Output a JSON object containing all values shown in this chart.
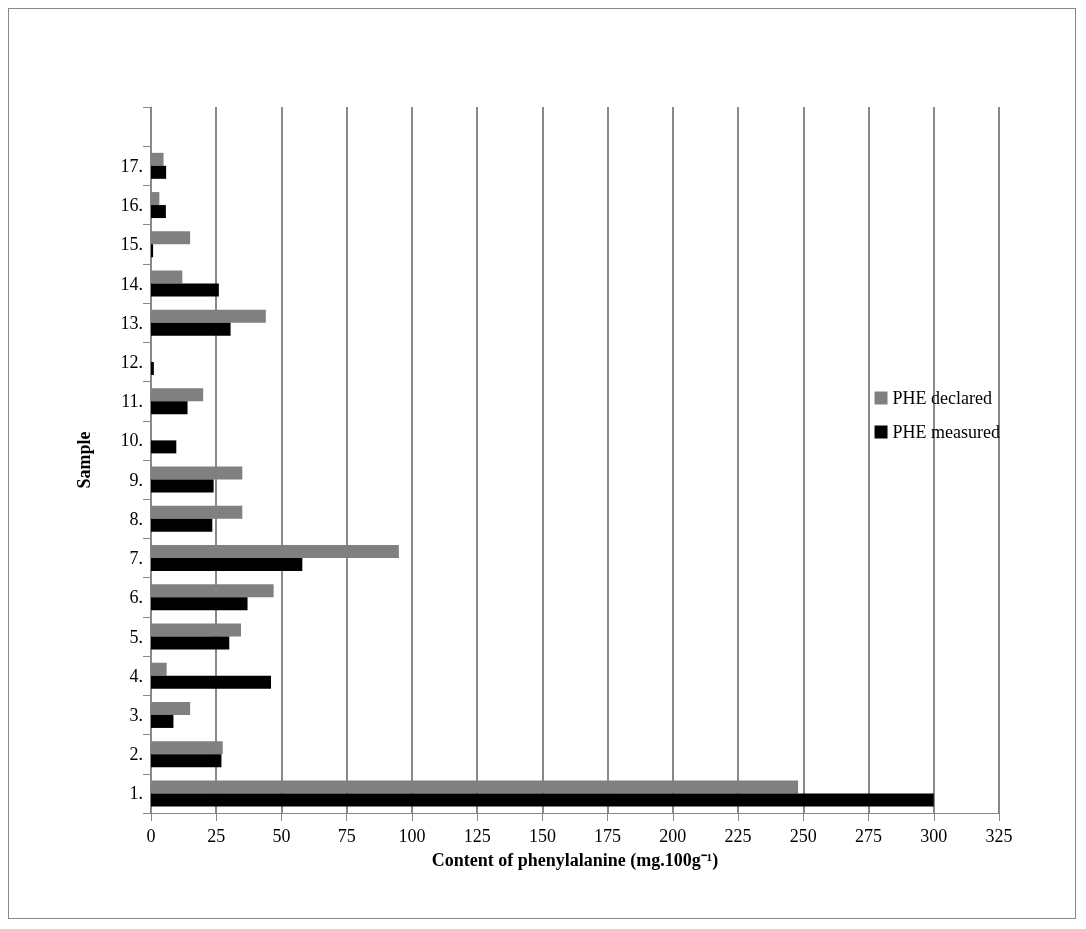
{
  "chart_data": {
    "type": "bar",
    "orientation": "horizontal",
    "xlabel": "Content of phenylalanine (mg.100g⁻¹)",
    "ylabel": "Sample",
    "categories": [
      null,
      "17.",
      "16.",
      "15.",
      "14.",
      "13.",
      "12.",
      "11.",
      "10.",
      "9.",
      "8.",
      "7.",
      "6.",
      "5.",
      "4.",
      "3.",
      "2.",
      "1."
    ],
    "series": [
      {
        "name": "PHE declared",
        "color": "#808080",
        "values": [
          null,
          4.8,
          3.2,
          15,
          12,
          44,
          null,
          20,
          null,
          35,
          35,
          95,
          47,
          34.5,
          6,
          15,
          27.5,
          248
        ]
      },
      {
        "name": "PHE measured",
        "color": "#000000",
        "values": [
          null,
          5.8,
          5.7,
          0.8,
          26,
          30.5,
          1.1,
          14,
          9.7,
          24,
          23.5,
          58,
          37,
          30,
          46,
          8.6,
          27,
          300
        ]
      }
    ],
    "xlim": [
      0,
      325
    ],
    "xticks": [
      0,
      25,
      50,
      75,
      100,
      125,
      150,
      175,
      200,
      225,
      250,
      275,
      300,
      325
    ],
    "grid": "x",
    "legend": "right"
  }
}
